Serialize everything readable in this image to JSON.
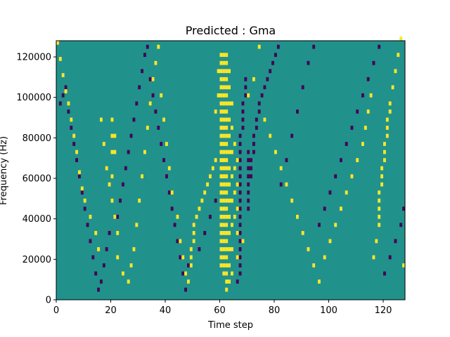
{
  "chart_data": {
    "type": "heatmap",
    "title": "Predicted : Gma",
    "xlabel": "Time step",
    "ylabel": "Frequency (Hz)",
    "xlim": [
      0,
      128
    ],
    "ylim": [
      0,
      128000
    ],
    "xticks": [
      0,
      20,
      40,
      60,
      80,
      100,
      120
    ],
    "yticks": [
      0,
      20000,
      40000,
      60000,
      80000,
      100000,
      120000
    ],
    "grid": false,
    "legend": "none",
    "colormap": "viridis",
    "colors": {
      "background": "#21918c",
      "low": "#440154",
      "high": "#fde725"
    },
    "columns": 128,
    "rows": 64,
    "cells": {
      "high": [
        [
          0,
          63
        ],
        [
          1,
          59
        ],
        [
          2,
          55
        ],
        [
          3,
          51
        ],
        [
          4,
          48
        ],
        [
          5,
          44
        ],
        [
          6,
          40
        ],
        [
          7,
          36
        ],
        [
          8,
          31
        ],
        [
          9,
          27
        ],
        [
          10,
          24
        ],
        [
          12,
          20
        ],
        [
          14,
          16
        ],
        [
          15,
          12
        ],
        [
          16,
          44
        ],
        [
          17,
          38
        ],
        [
          18,
          32
        ],
        [
          19,
          28
        ],
        [
          20,
          24
        ],
        [
          20,
          30
        ],
        [
          20,
          36
        ],
        [
          20,
          40
        ],
        [
          20,
          44
        ],
        [
          21,
          20
        ],
        [
          21,
          36
        ],
        [
          21,
          40
        ],
        [
          22,
          16
        ],
        [
          22,
          10
        ],
        [
          24,
          6
        ],
        [
          26,
          4
        ],
        [
          27,
          8
        ],
        [
          28,
          12
        ],
        [
          29,
          18
        ],
        [
          30,
          24
        ],
        [
          31,
          30
        ],
        [
          32,
          36
        ],
        [
          33,
          42
        ],
        [
          34,
          48
        ],
        [
          35,
          54
        ],
        [
          36,
          58
        ],
        [
          37,
          62
        ],
        [
          38,
          50
        ],
        [
          39,
          44
        ],
        [
          40,
          38
        ],
        [
          41,
          32
        ],
        [
          42,
          26
        ],
        [
          44,
          20
        ],
        [
          45,
          14
        ],
        [
          46,
          10
        ],
        [
          47,
          6
        ],
        [
          48,
          4
        ],
        [
          49,
          8
        ],
        [
          49,
          10
        ],
        [
          49,
          12
        ],
        [
          50,
          14
        ],
        [
          50,
          16
        ],
        [
          50,
          18
        ],
        [
          51,
          20
        ],
        [
          52,
          22
        ],
        [
          53,
          24
        ],
        [
          54,
          26
        ],
        [
          55,
          28
        ],
        [
          56,
          30
        ],
        [
          57,
          32
        ],
        [
          58,
          34
        ],
        [
          58,
          46
        ],
        [
          59,
          50
        ],
        [
          59,
          56
        ],
        [
          60,
          8
        ],
        [
          60,
          10
        ],
        [
          60,
          12
        ],
        [
          60,
          14
        ],
        [
          60,
          16
        ],
        [
          60,
          18
        ],
        [
          60,
          20
        ],
        [
          60,
          22
        ],
        [
          60,
          24
        ],
        [
          60,
          26
        ],
        [
          60,
          28
        ],
        [
          60,
          30
        ],
        [
          60,
          32
        ],
        [
          60,
          34
        ],
        [
          60,
          36
        ],
        [
          60,
          38
        ],
        [
          60,
          40
        ],
        [
          60,
          42
        ],
        [
          60,
          44
        ],
        [
          60,
          46
        ],
        [
          60,
          48
        ],
        [
          60,
          50
        ],
        [
          60,
          52
        ],
        [
          60,
          54
        ],
        [
          60,
          56
        ],
        [
          60,
          58
        ],
        [
          60,
          60
        ],
        [
          61,
          6
        ],
        [
          61,
          8
        ],
        [
          61,
          10
        ],
        [
          61,
          12
        ],
        [
          61,
          14
        ],
        [
          61,
          16
        ],
        [
          61,
          18
        ],
        [
          61,
          20
        ],
        [
          61,
          22
        ],
        [
          61,
          24
        ],
        [
          61,
          26
        ],
        [
          61,
          28
        ],
        [
          61,
          30
        ],
        [
          61,
          32
        ],
        [
          61,
          34
        ],
        [
          61,
          36
        ],
        [
          61,
          38
        ],
        [
          61,
          40
        ],
        [
          61,
          42
        ],
        [
          61,
          44
        ],
        [
          61,
          46
        ],
        [
          61,
          48
        ],
        [
          61,
          50
        ],
        [
          61,
          52
        ],
        [
          61,
          54
        ],
        [
          61,
          56
        ],
        [
          61,
          58
        ],
        [
          61,
          60
        ],
        [
          62,
          2
        ],
        [
          62,
          4
        ],
        [
          62,
          6
        ],
        [
          62,
          8
        ],
        [
          62,
          10
        ],
        [
          62,
          12
        ],
        [
          62,
          14
        ],
        [
          62,
          16
        ],
        [
          62,
          18
        ],
        [
          62,
          20
        ],
        [
          62,
          22
        ],
        [
          62,
          24
        ],
        [
          62,
          26
        ],
        [
          62,
          28
        ],
        [
          62,
          30
        ],
        [
          62,
          32
        ],
        [
          62,
          34
        ],
        [
          62,
          36
        ],
        [
          62,
          38
        ],
        [
          62,
          40
        ],
        [
          62,
          42
        ],
        [
          62,
          44
        ],
        [
          62,
          46
        ],
        [
          62,
          48
        ],
        [
          62,
          50
        ],
        [
          62,
          52
        ],
        [
          62,
          54
        ],
        [
          62,
          56
        ],
        [
          62,
          58
        ],
        [
          62,
          60
        ],
        [
          63,
          4
        ],
        [
          63,
          8
        ],
        [
          63,
          12
        ],
        [
          63,
          16
        ],
        [
          63,
          20
        ],
        [
          63,
          24
        ],
        [
          63,
          28
        ],
        [
          63,
          32
        ],
        [
          63,
          36
        ],
        [
          63,
          40
        ],
        [
          63,
          44
        ],
        [
          63,
          48
        ],
        [
          63,
          52
        ],
        [
          63,
          56
        ],
        [
          64,
          6
        ],
        [
          64,
          12
        ],
        [
          64,
          18
        ],
        [
          64,
          24
        ],
        [
          64,
          30
        ],
        [
          64,
          36
        ],
        [
          64,
          42
        ],
        [
          64,
          48
        ],
        [
          65,
          20
        ],
        [
          65,
          26
        ],
        [
          65,
          32
        ],
        [
          65,
          38
        ],
        [
          66,
          10
        ],
        [
          66,
          16
        ],
        [
          66,
          22
        ],
        [
          66,
          28
        ],
        [
          66,
          34
        ],
        [
          68,
          14
        ],
        [
          70,
          50
        ],
        [
          72,
          54
        ],
        [
          74,
          62
        ],
        [
          76,
          44
        ],
        [
          78,
          40
        ],
        [
          80,
          36
        ],
        [
          82,
          32
        ],
        [
          84,
          28
        ],
        [
          86,
          24
        ],
        [
          88,
          20
        ],
        [
          90,
          16
        ],
        [
          92,
          12
        ],
        [
          94,
          8
        ],
        [
          96,
          4
        ],
        [
          98,
          10
        ],
        [
          100,
          14
        ],
        [
          102,
          18
        ],
        [
          104,
          22
        ],
        [
          106,
          26
        ],
        [
          108,
          30
        ],
        [
          110,
          34
        ],
        [
          112,
          38
        ],
        [
          113,
          42
        ],
        [
          114,
          46
        ],
        [
          115,
          50
        ],
        [
          116,
          10
        ],
        [
          117,
          14
        ],
        [
          118,
          18
        ],
        [
          118,
          20
        ],
        [
          118,
          22
        ],
        [
          118,
          24
        ],
        [
          118,
          26
        ],
        [
          119,
          28
        ],
        [
          119,
          30
        ],
        [
          119,
          32
        ],
        [
          120,
          34
        ],
        [
          120,
          36
        ],
        [
          120,
          38
        ],
        [
          121,
          40
        ],
        [
          121,
          42
        ],
        [
          121,
          44
        ],
        [
          122,
          46
        ],
        [
          122,
          48
        ],
        [
          123,
          52
        ],
        [
          124,
          56
        ],
        [
          125,
          60
        ],
        [
          126,
          64
        ],
        [
          127,
          8
        ]
      ],
      "low": [
        [
          1,
          48
        ],
        [
          2,
          50
        ],
        [
          3,
          52
        ],
        [
          4,
          46
        ],
        [
          5,
          42
        ],
        [
          6,
          38
        ],
        [
          7,
          34
        ],
        [
          8,
          30
        ],
        [
          9,
          26
        ],
        [
          10,
          22
        ],
        [
          11,
          18
        ],
        [
          12,
          14
        ],
        [
          13,
          10
        ],
        [
          14,
          6
        ],
        [
          15,
          2
        ],
        [
          16,
          4
        ],
        [
          17,
          8
        ],
        [
          18,
          12
        ],
        [
          19,
          16
        ],
        [
          22,
          20
        ],
        [
          23,
          24
        ],
        [
          24,
          28
        ],
        [
          25,
          32
        ],
        [
          26,
          36
        ],
        [
          27,
          40
        ],
        [
          28,
          44
        ],
        [
          29,
          48
        ],
        [
          30,
          52
        ],
        [
          31,
          56
        ],
        [
          32,
          60
        ],
        [
          33,
          62
        ],
        [
          34,
          54
        ],
        [
          35,
          50
        ],
        [
          36,
          46
        ],
        [
          37,
          42
        ],
        [
          38,
          38
        ],
        [
          39,
          34
        ],
        [
          40,
          30
        ],
        [
          41,
          26
        ],
        [
          42,
          22
        ],
        [
          43,
          18
        ],
        [
          44,
          14
        ],
        [
          45,
          10
        ],
        [
          46,
          6
        ],
        [
          47,
          2
        ],
        [
          48,
          8
        ],
        [
          52,
          12
        ],
        [
          54,
          16
        ],
        [
          56,
          20
        ],
        [
          58,
          24
        ],
        [
          66,
          4
        ],
        [
          67,
          6
        ],
        [
          67,
          8
        ],
        [
          67,
          10
        ],
        [
          67,
          12
        ],
        [
          67,
          14
        ],
        [
          67,
          16
        ],
        [
          67,
          18
        ],
        [
          67,
          20
        ],
        [
          67,
          22
        ],
        [
          67,
          24
        ],
        [
          67,
          26
        ],
        [
          67,
          28
        ],
        [
          67,
          30
        ],
        [
          67,
          32
        ],
        [
          67,
          34
        ],
        [
          67,
          36
        ],
        [
          67,
          38
        ],
        [
          67,
          40
        ],
        [
          68,
          42
        ],
        [
          68,
          44
        ],
        [
          68,
          46
        ],
        [
          68,
          48
        ],
        [
          69,
          50
        ],
        [
          69,
          52
        ],
        [
          69,
          54
        ],
        [
          70,
          22
        ],
        [
          70,
          24
        ],
        [
          70,
          26
        ],
        [
          70,
          28
        ],
        [
          70,
          30
        ],
        [
          70,
          32
        ],
        [
          70,
          34
        ],
        [
          70,
          36
        ],
        [
          71,
          30
        ],
        [
          71,
          32
        ],
        [
          71,
          34
        ],
        [
          72,
          36
        ],
        [
          72,
          38
        ],
        [
          72,
          40
        ],
        [
          73,
          42
        ],
        [
          73,
          44
        ],
        [
          74,
          46
        ],
        [
          74,
          48
        ],
        [
          75,
          50
        ],
        [
          76,
          52
        ],
        [
          77,
          54
        ],
        [
          78,
          56
        ],
        [
          79,
          58
        ],
        [
          80,
          60
        ],
        [
          81,
          62
        ],
        [
          82,
          28
        ],
        [
          84,
          34
        ],
        [
          86,
          40
        ],
        [
          88,
          46
        ],
        [
          90,
          52
        ],
        [
          92,
          58
        ],
        [
          94,
          62
        ],
        [
          96,
          18
        ],
        [
          98,
          22
        ],
        [
          100,
          26
        ],
        [
          102,
          30
        ],
        [
          104,
          34
        ],
        [
          106,
          38
        ],
        [
          108,
          42
        ],
        [
          110,
          46
        ],
        [
          112,
          50
        ],
        [
          114,
          54
        ],
        [
          116,
          58
        ],
        [
          118,
          62
        ],
        [
          120,
          6
        ],
        [
          122,
          10
        ],
        [
          124,
          14
        ],
        [
          126,
          18
        ],
        [
          127,
          22
        ]
      ]
    }
  }
}
